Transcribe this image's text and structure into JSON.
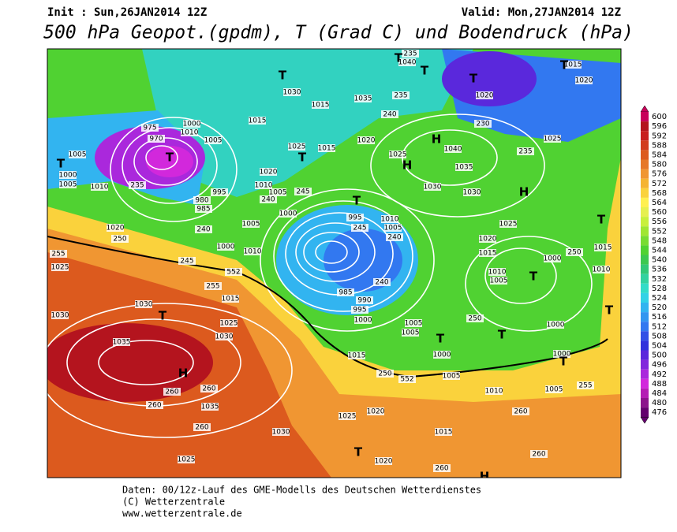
{
  "header": {
    "init": "Init : Sun,26JAN2014 12Z",
    "valid": "Valid: Mon,27JAN2014 12Z",
    "title": "500 hPa Geopot.(gpdm), T (Grad C) und Bodendruck (hPa)"
  },
  "colorbar": {
    "ticks": [
      600,
      596,
      592,
      588,
      584,
      580,
      576,
      572,
      568,
      564,
      560,
      556,
      552,
      548,
      544,
      540,
      536,
      532,
      528,
      524,
      520,
      516,
      512,
      508,
      504,
      500,
      496,
      492,
      488,
      484,
      480,
      476
    ],
    "colors": [
      "#c8005a",
      "#b4141e",
      "#c81e1e",
      "#d23c1e",
      "#dc5a1e",
      "#e67828",
      "#f09632",
      "#f5b432",
      "#fad23c",
      "#fff050",
      "#e6f050",
      "#c8f03c",
      "#a0e632",
      "#78dc32",
      "#50d232",
      "#3cc850",
      "#32c878",
      "#32d2a0",
      "#32dcc8",
      "#32d2e6",
      "#32b4f0",
      "#3296f0",
      "#3278f0",
      "#3250e6",
      "#3232dc",
      "#5a28dc",
      "#8228dc",
      "#aa28dc",
      "#d228dc",
      "#b41eb4",
      "#8c148c",
      "#64006e"
    ]
  },
  "map_labels": [
    "975",
    "970",
    "1000",
    "1010",
    "1005",
    "1005",
    "1010",
    "1000",
    "1005",
    "995",
    "980",
    "985",
    "1020",
    "250",
    "255",
    "1025",
    "245",
    "1000",
    "1010",
    "552",
    "255",
    "1015",
    "1030",
    "1030",
    "1025",
    "1030",
    "1035",
    "260",
    "260",
    "1035",
    "260",
    "260",
    "1030",
    "1025",
    "1020",
    "1025",
    "1015",
    "1020",
    "260",
    "260",
    "260",
    "1005",
    "255",
    "1010",
    "1005",
    "552",
    "250",
    "1015",
    "1000",
    "1005",
    "1005",
    "1000",
    "995",
    "990",
    "985",
    "240",
    "250",
    "1000",
    "1000",
    "1015",
    "1010",
    "1005",
    "1000",
    "250",
    "1015",
    "1010",
    "1020",
    "1025",
    "1030",
    "1030",
    "1035",
    "1040",
    "1025",
    "1020",
    "1015",
    "1025",
    "1020",
    "1010",
    "1005",
    "245",
    "240",
    "1000",
    "995",
    "245",
    "1010",
    "1005",
    "240",
    "1030",
    "1015",
    "1035",
    "1040",
    "235",
    "235",
    "240",
    "1020",
    "1020",
    "1015",
    "230",
    "235",
    "1025",
    "1015",
    "1005",
    "235",
    "240"
  ],
  "centers": [
    "T",
    "T",
    "T",
    "T",
    "T",
    "H",
    "T",
    "T",
    "H",
    "H",
    "H",
    "T",
    "T",
    "T",
    "T",
    "T",
    "T",
    "T",
    "H",
    "T",
    "T",
    "T"
  ],
  "footer": [
    "Daten: 00/12z-Lauf des GME-Modells des Deutschen Wetterdienstes",
    "(C) Wetterzentrale",
    "www.wetterzentrale.de"
  ]
}
